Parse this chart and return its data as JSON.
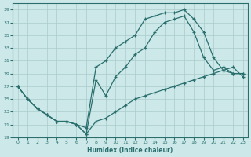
{
  "xlabel": "Humidex (Indice chaleur)",
  "xlim": [
    -0.5,
    23.5
  ],
  "ylim": [
    19,
    40
  ],
  "yticks": [
    19,
    21,
    23,
    25,
    27,
    29,
    31,
    33,
    35,
    37,
    39
  ],
  "xticks": [
    0,
    1,
    2,
    3,
    4,
    5,
    6,
    7,
    8,
    9,
    10,
    11,
    12,
    13,
    14,
    15,
    16,
    17,
    18,
    19,
    20,
    21,
    22,
    23
  ],
  "bg_color": "#cce8e8",
  "grid_color": "#aacccc",
  "line_color": "#2a6e6e",
  "line1_x": [
    0,
    1,
    2,
    3,
    4,
    5,
    6,
    7,
    8,
    9,
    10,
    11,
    12,
    13,
    14,
    15,
    16,
    17,
    18,
    19,
    20,
    21,
    22,
    23
  ],
  "line1_y": [
    27,
    25,
    23.5,
    22.5,
    21.5,
    21.5,
    21.0,
    20.5,
    30,
    31,
    33,
    34,
    35,
    37.5,
    38,
    38.5,
    38.5,
    39,
    37.5,
    35.5,
    31.5,
    29.5,
    29,
    29
  ],
  "line2_x": [
    0,
    1,
    2,
    3,
    4,
    5,
    6,
    7,
    8,
    9,
    10,
    11,
    12,
    13,
    14,
    15,
    16,
    17,
    18,
    19,
    20,
    21,
    22,
    23
  ],
  "line2_y": [
    27,
    25,
    23.5,
    22.5,
    21.5,
    21.5,
    21.0,
    19.5,
    28,
    25.5,
    28.5,
    30,
    32,
    33,
    35.5,
    37,
    37.5,
    38,
    35.5,
    31.5,
    29.5,
    30,
    29,
    29
  ],
  "line3_x": [
    0,
    1,
    2,
    3,
    4,
    5,
    6,
    7,
    8,
    9,
    10,
    11,
    12,
    13,
    14,
    15,
    16,
    17,
    18,
    19,
    20,
    21,
    22,
    23
  ],
  "line3_y": [
    27,
    25,
    23.5,
    22.5,
    21.5,
    21.5,
    21.0,
    19.5,
    21.5,
    22,
    23,
    24,
    25,
    25.5,
    26,
    26.5,
    27,
    27.5,
    28,
    28.5,
    29,
    29.5,
    30,
    28.5
  ]
}
